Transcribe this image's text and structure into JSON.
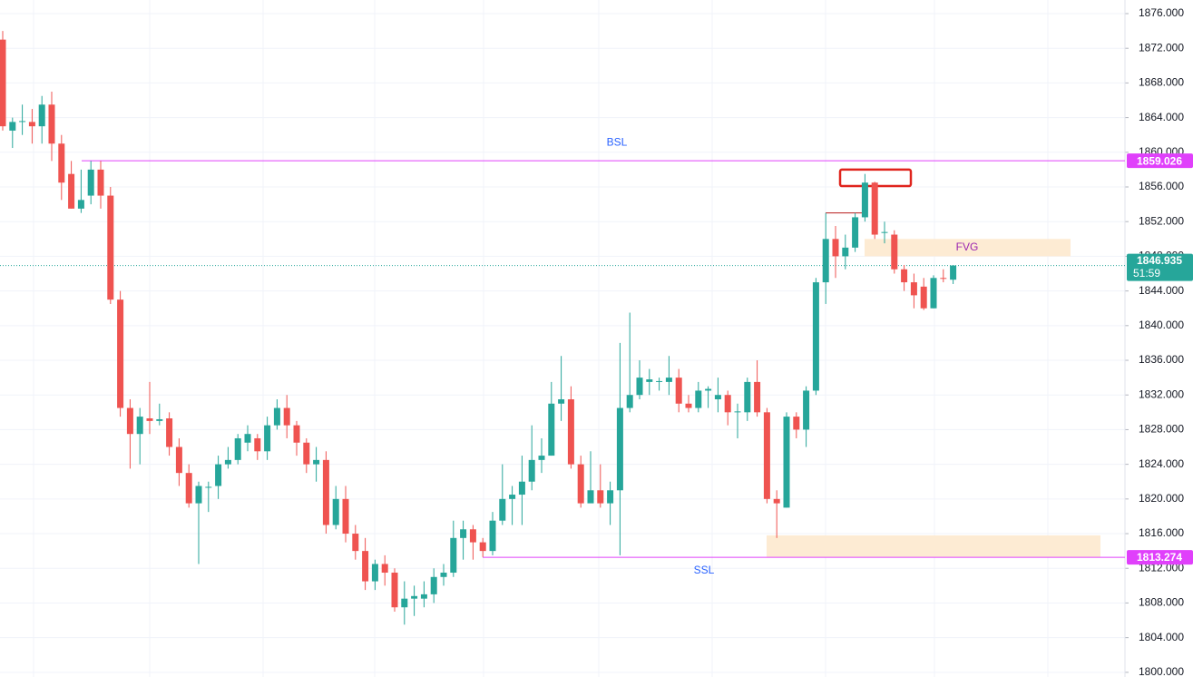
{
  "chart_data": {
    "type": "candlestick",
    "up_color": "#26a69a",
    "down_color": "#ef5350",
    "candles": {
      "open": [
        1873,
        1862.5,
        1863.5,
        1863.5,
        1863,
        1865.5,
        1861,
        1857.5,
        1853.5,
        1855,
        1858,
        1855,
        1843,
        1830.5,
        1827.5,
        1829.3,
        1829,
        1829.3,
        1826,
        1823,
        1819.5,
        1821.3,
        1821.5,
        1824,
        1824.5,
        1826.5,
        1827,
        1825.5,
        1828.5,
        1830.5,
        1828.5,
        1826.5,
        1824,
        1824.5,
        1817,
        1820,
        1816,
        1814,
        1810.5,
        1812.5,
        1811.5,
        1807.5,
        1808.5,
        1808.5,
        1809,
        1811,
        1811.5,
        1815.5,
        1816.5,
        1815,
        1814,
        1817.5,
        1820,
        1820.5,
        1822,
        1824.5,
        1825,
        1831,
        1831.5,
        1824,
        1819.5,
        1821,
        1819.5,
        1821,
        1830.5,
        1832,
        1833.5,
        1833.5,
        1833.5,
        1834,
        1831,
        1830.5,
        1832.5,
        1831.5,
        1832,
        1830,
        1830,
        1833.5,
        1830,
        1820,
        1819,
        1829.5,
        1828,
        1832.5,
        1845,
        1850,
        1848,
        1849,
        1852.5,
        1856.5,
        1850.7,
        1850.5,
        1846.5,
        1845,
        1844.5,
        1842,
        1845.5,
        1845.3
      ],
      "high": [
        1874,
        1864,
        1865.5,
        1865,
        1866.5,
        1867,
        1862,
        1859,
        1858,
        1859,
        1859,
        1856,
        1844,
        1831.5,
        1830.5,
        1833.5,
        1831,
        1830,
        1827,
        1824,
        1822,
        1822,
        1825,
        1826,
        1827.5,
        1828.5,
        1827.5,
        1829.5,
        1831.5,
        1832,
        1829,
        1827,
        1826,
        1825.5,
        1821.5,
        1821.5,
        1817,
        1815.5,
        1813,
        1813.5,
        1812,
        1810.5,
        1810,
        1810.5,
        1812,
        1812.5,
        1817.5,
        1817.5,
        1817,
        1815.5,
        1818.5,
        1824,
        1821.5,
        1825,
        1828.5,
        1827,
        1833.5,
        1836.5,
        1833,
        1825,
        1825.5,
        1824,
        1822,
        1838,
        1841.5,
        1836,
        1835,
        1834,
        1836.5,
        1835,
        1832,
        1833.5,
        1833,
        1834,
        1832.5,
        1831,
        1834,
        1836,
        1830.5,
        1821,
        1830,
        1830,
        1833,
        1845.5,
        1853,
        1851.5,
        1850.5,
        1853,
        1857.5,
        1856.6,
        1852,
        1851,
        1847,
        1846,
        1845.5,
        1845.8,
        1846.5,
        1847
      ],
      "low": [
        1862.5,
        1860.5,
        1862,
        1861,
        1861,
        1859,
        1854.5,
        1853.5,
        1853,
        1854,
        1853.5,
        1842.5,
        1829.5,
        1823.5,
        1824,
        1827.5,
        1828.5,
        1825,
        1821.5,
        1819,
        1812.5,
        1818.5,
        1820,
        1823.5,
        1824,
        1825.5,
        1824.5,
        1824.5,
        1828,
        1827,
        1825,
        1823,
        1822,
        1816,
        1816.5,
        1815,
        1813,
        1809.5,
        1809.5,
        1810,
        1807,
        1805.5,
        1806.5,
        1807.5,
        1808,
        1810,
        1811,
        1813,
        1813,
        1813.3,
        1813.5,
        1817,
        1817,
        1817,
        1821,
        1823,
        1825,
        1829,
        1823.5,
        1819,
        1820,
        1819,
        1817,
        1813.5,
        1830,
        1831.5,
        1832,
        1832.5,
        1832,
        1830,
        1830,
        1830,
        1830.5,
        1830,
        1828.5,
        1827,
        1829,
        1829.5,
        1819.5,
        1815.5,
        1819,
        1827,
        1826,
        1832,
        1842.5,
        1845.5,
        1846.5,
        1848.5,
        1852,
        1850,
        1849.5,
        1846,
        1844,
        1842,
        1841.8,
        1842,
        1845,
        1844.8
      ],
      "close": [
        1863,
        1863.5,
        1863.6,
        1863,
        1865.5,
        1861,
        1856.5,
        1853.5,
        1854.5,
        1858,
        1855,
        1843,
        1830.5,
        1827.5,
        1829.5,
        1829,
        1829.2,
        1826,
        1823,
        1819.5,
        1821.5,
        1821.4,
        1824,
        1824.5,
        1827,
        1827.5,
        1825.5,
        1828.5,
        1830.5,
        1828.5,
        1826.5,
        1824,
        1824.5,
        1817,
        1820,
        1816,
        1814,
        1810.5,
        1812.5,
        1811.5,
        1807.5,
        1808.5,
        1808.8,
        1809,
        1811,
        1811.5,
        1815.5,
        1816.5,
        1815,
        1814,
        1817.5,
        1820,
        1820.5,
        1822,
        1824.5,
        1825,
        1831,
        1831.5,
        1824,
        1819.5,
        1821,
        1819.5,
        1821,
        1830.5,
        1832,
        1834,
        1833.8,
        1833.6,
        1834,
        1831,
        1830.5,
        1832.5,
        1832.7,
        1832,
        1830,
        1830.1,
        1833.5,
        1830,
        1820,
        1819.5,
        1829.5,
        1828,
        1832.5,
        1845,
        1850,
        1848,
        1849,
        1852.5,
        1856.5,
        1850.5,
        1850.8,
        1846.5,
        1845,
        1843.5,
        1842,
        1845.5,
        1845.4,
        1846.935
      ]
    },
    "ylim": [
      1799.46,
      1877.57
    ],
    "yticks": [
      {
        "value": 1800,
        "label": "1800.000"
      },
      {
        "value": 1804,
        "label": "1804.000"
      },
      {
        "value": 1808,
        "label": "1808.000"
      },
      {
        "value": 1812,
        "label": "1812.000"
      },
      {
        "value": 1816,
        "label": "1816.000"
      },
      {
        "value": 1820,
        "label": "1820.000"
      },
      {
        "value": 1824,
        "label": "1824.000"
      },
      {
        "value": 1828,
        "label": "1828.000"
      },
      {
        "value": 1832,
        "label": "1832.000"
      },
      {
        "value": 1836,
        "label": "1836.000"
      },
      {
        "value": 1840,
        "label": "1840.000"
      },
      {
        "value": 1844,
        "label": "1844.000"
      },
      {
        "value": 1848,
        "label": "1848.000"
      },
      {
        "value": 1852,
        "label": "1852.000"
      },
      {
        "value": 1856,
        "label": "1856.000"
      },
      {
        "value": 1860,
        "label": "1860.000"
      },
      {
        "value": 1864,
        "label": "1864.000"
      },
      {
        "value": 1868,
        "label": "1868.000"
      },
      {
        "value": 1872,
        "label": "1872.000"
      },
      {
        "value": 1876,
        "label": "1876.000"
      }
    ],
    "grid": true,
    "levels": [
      {
        "label": "BSL",
        "value": 1859.026,
        "color": "#e040fb"
      },
      {
        "label": "SSL",
        "value": 1813.274,
        "color": "#e040fb"
      },
      {
        "value": 1853,
        "color": "#b71c1c"
      }
    ],
    "zones": [
      {
        "label": "FVG",
        "top": 1850,
        "bottom": 1848,
        "color": "#fdebd3"
      },
      {
        "top": 1815.8,
        "bottom": 1813.3,
        "color": "#fdebd3"
      },
      {
        "top": 1858,
        "bottom": 1856.1,
        "color": "#e0241d"
      }
    ],
    "last_price": 1846.935,
    "countdown": "51:59"
  }
}
